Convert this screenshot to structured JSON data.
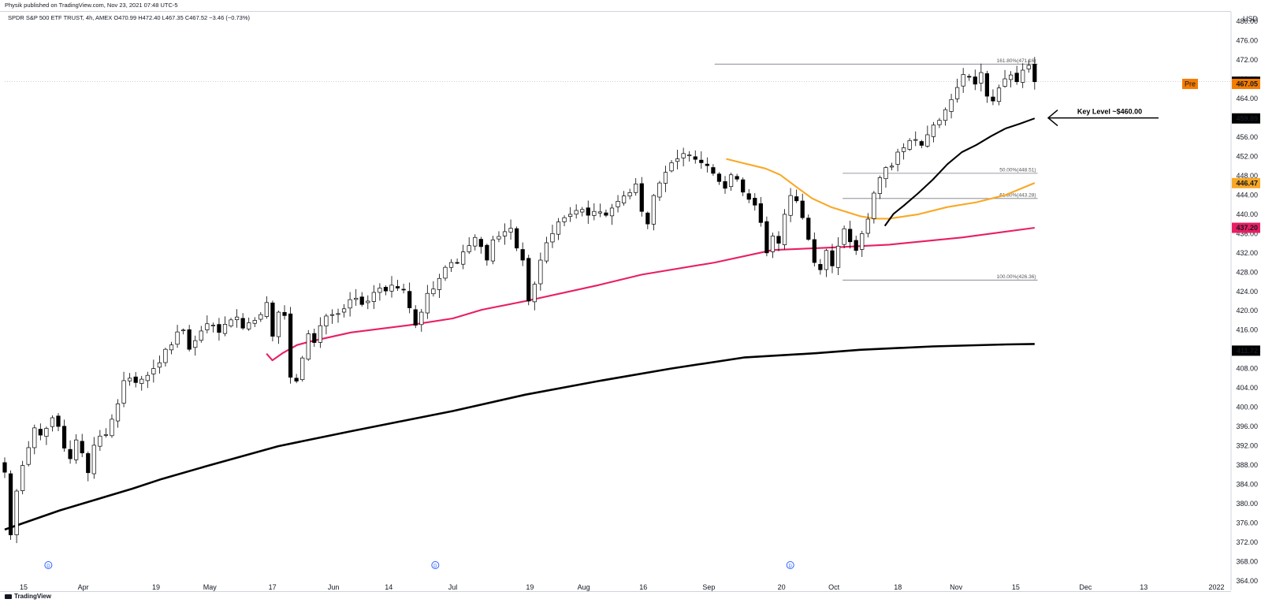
{
  "header": {
    "publisher": "Physik published on TradingView.com, Nov 23, 2021 07:48 UTC-5",
    "symbol_line": "SPDR S&P 500 ETF TRUST, 4h, AMEX  O470.99 H472.40 L467.35 C467.52 −3.46 (−0.73%)"
  },
  "footer": {
    "brand": "TradingView"
  },
  "chart_data": {
    "type": "candlestick",
    "currency": "USD",
    "ylim": [
      362,
      482
    ],
    "y_ticks": [
      364,
      368,
      372,
      376,
      380,
      384,
      388,
      392,
      396,
      400,
      404,
      408,
      412,
      416,
      420,
      424,
      428,
      432,
      436,
      440,
      444,
      448,
      452,
      456,
      460,
      464,
      468,
      472,
      476,
      480
    ],
    "x_ticks": [
      {
        "label": "15",
        "t": 0.5
      },
      {
        "label": "Apr",
        "t": 4.6
      },
      {
        "label": "19",
        "t": 9.6
      },
      {
        "label": "May",
        "t": 13.3
      },
      {
        "label": "17",
        "t": 17.6
      },
      {
        "label": "Jun",
        "t": 21.8
      },
      {
        "label": "14",
        "t": 25.6
      },
      {
        "label": "Jul",
        "t": 30.0
      },
      {
        "label": "19",
        "t": 35.3
      },
      {
        "label": "Aug",
        "t": 39.0
      },
      {
        "label": "16",
        "t": 43.1
      },
      {
        "label": "Sep",
        "t": 47.6
      },
      {
        "label": "20",
        "t": 52.6
      },
      {
        "label": "Oct",
        "t": 56.2
      },
      {
        "label": "18",
        "t": 60.6
      },
      {
        "label": "Nov",
        "t": 64.6
      },
      {
        "label": "15",
        "t": 68.7
      },
      {
        "label": "Dec",
        "t": 73.5
      },
      {
        "label": "13",
        "t": 77.5
      },
      {
        "label": "2022",
        "t": 82.5
      }
    ],
    "t_range": [
      -0.8,
      83.5
    ],
    "dividend_markers": [
      2.2,
      28.8,
      53.2
    ],
    "closes": [
      386.5,
      373.5,
      382.6,
      387.9,
      391.6,
      395.7,
      394.2,
      395.6,
      397.8,
      396.0,
      391.5,
      389.3,
      393.2,
      390.5,
      386.4,
      392.1,
      394.0,
      394.3,
      397.5,
      400.7,
      405.5,
      406.0,
      405.1,
      405.8,
      406.6,
      408.0,
      409.2,
      412.0,
      412.9,
      415.6,
      416.0,
      412.0,
      413.8,
      415.8,
      417.3,
      417.0,
      415.5,
      417.2,
      418.1,
      418.7,
      416.4,
      417.5,
      418.0,
      419.2,
      421.7,
      414.7,
      419.7,
      419.0,
      406.2,
      405.4,
      410.2,
      415.2,
      413.4,
      416.9,
      418.9,
      419.2,
      419.4,
      420.4,
      422.3,
      422.6,
      421.3,
      422.0,
      423.8,
      424.7,
      424.1,
      425.3,
      424.7,
      424.4,
      420.6,
      417.0,
      419.7,
      423.6,
      424.5,
      426.7,
      429.0,
      430.0,
      430.0,
      432.2,
      433.5,
      435.2,
      433.3,
      430.5,
      434.7,
      435.4,
      436.4,
      437.1,
      433.0,
      430.5,
      422.0,
      425.5,
      430.5,
      434.1,
      436.0,
      438.4,
      439.3,
      440.0,
      440.8,
      441.0,
      439.8,
      440.6,
      440.5,
      439.8,
      441.3,
      442.7,
      443.8,
      444.5,
      446.3,
      440.6,
      438.0,
      443.9,
      446.5,
      448.7,
      450.7,
      451.5,
      452.6,
      452.3,
      451.4,
      450.7,
      450.1,
      448.5,
      446.8,
      445.4,
      448.2,
      447.3,
      444.6,
      443.1,
      441.9,
      438.3,
      432.0,
      435.5,
      434.0,
      440.0,
      443.9,
      442.8,
      439.3,
      434.8,
      430.0,
      428.5,
      432.5,
      429.3,
      433.4,
      437.0,
      434.3,
      432.5,
      436.0,
      439.0,
      444.4,
      447.6,
      449.7,
      450.0,
      452.9,
      453.8,
      455.3,
      455.5,
      454.3,
      456.5,
      458.5,
      459.5,
      461.7,
      463.8,
      466.3,
      469.0,
      468.5,
      467.0,
      469.4,
      464.5,
      463.5,
      466.2,
      468.1,
      468.9,
      467.5,
      469.9,
      470.9,
      467.5
    ],
    "close_last_label": "467.52",
    "premarket": {
      "label": "Pre",
      "value": "467.05",
      "price": 467.05
    },
    "moving_averages": [
      {
        "id": "sma200",
        "color": "#000000",
        "last": 411.72,
        "label": "411.72",
        "points": [
          [
            -0.8,
            374.6
          ],
          [
            3,
            378.6
          ],
          [
            8,
            383.1
          ],
          [
            10,
            385.1
          ],
          [
            13,
            387.7
          ],
          [
            18,
            391.9
          ],
          [
            23,
            395.0
          ],
          [
            26,
            396.8
          ],
          [
            30,
            399.2
          ],
          [
            35,
            402.6
          ],
          [
            40,
            405.4
          ],
          [
            45,
            408.0
          ],
          [
            50,
            410.3
          ],
          [
            55,
            411.2
          ],
          [
            58,
            411.9
          ],
          [
            63,
            412.6
          ],
          [
            68,
            413.0
          ],
          [
            70,
            413.1
          ]
        ]
      },
      {
        "id": "sma100",
        "color": "#e91e63",
        "last": 437.2,
        "label": "437.20",
        "points": [
          [
            17.2,
            411.1
          ],
          [
            17.6,
            409.7
          ],
          [
            18.3,
            411.2
          ],
          [
            19.3,
            412.9
          ],
          [
            20.3,
            413.7
          ],
          [
            23,
            415.5
          ],
          [
            27,
            417.0
          ],
          [
            30,
            418.4
          ],
          [
            32,
            420.2
          ],
          [
            35,
            422.0
          ],
          [
            40,
            425.3
          ],
          [
            43,
            427.5
          ],
          [
            48,
            430.0
          ],
          [
            52,
            432.6
          ],
          [
            56,
            433.1
          ],
          [
            60,
            433.7
          ],
          [
            65,
            435.2
          ],
          [
            70,
            437.2
          ]
        ]
      },
      {
        "id": "sma50",
        "color": "#f9a825",
        "last": 446.47,
        "label": "446.47",
        "points": [
          [
            48.8,
            451.5
          ],
          [
            50,
            450.6
          ],
          [
            51.5,
            449.5
          ],
          [
            52.5,
            448.2
          ],
          [
            53.7,
            445.5
          ],
          [
            54.7,
            443.3
          ],
          [
            56,
            441.5
          ],
          [
            58,
            439.6
          ],
          [
            59,
            439.1
          ],
          [
            60,
            439.1
          ],
          [
            62,
            440.0
          ],
          [
            64,
            441.5
          ],
          [
            66,
            442.5
          ],
          [
            68,
            444.0
          ],
          [
            70,
            446.5
          ]
        ]
      },
      {
        "id": "sma20",
        "color": "#000000",
        "last": 459.89,
        "label": "459.89",
        "points": [
          [
            59.7,
            437.6
          ],
          [
            60.3,
            440.1
          ],
          [
            61,
            441.8
          ],
          [
            62,
            444.4
          ],
          [
            63,
            447.2
          ],
          [
            64,
            450.4
          ],
          [
            65,
            452.9
          ],
          [
            66,
            454.4
          ],
          [
            67,
            456.2
          ],
          [
            68,
            457.8
          ],
          [
            69,
            458.8
          ],
          [
            70,
            459.9
          ]
        ]
      }
    ],
    "fib_levels": [
      {
        "label": "161.80%(471.16)",
        "price": 471.16,
        "t0": 48.0
      },
      {
        "label": "50.00%(448.51)",
        "price": 448.51,
        "t0": 56.8
      },
      {
        "label": "61.80%(443.28)",
        "price": 443.28,
        "t0": 56.8
      },
      {
        "label": "100.00%(426.36)",
        "price": 426.36,
        "t0": 56.8
      }
    ],
    "annotation": {
      "text": "Key Level ~$460.00",
      "price": 460.0
    }
  }
}
